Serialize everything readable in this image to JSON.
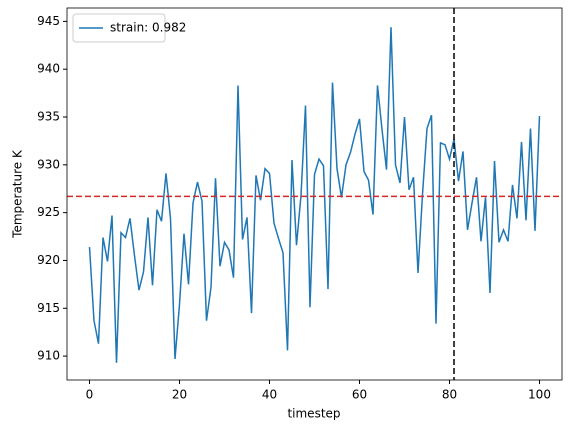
{
  "chart_data": {
    "type": "line",
    "xlabel": "timestep",
    "ylabel": "Temperature K",
    "x": [
      0,
      1,
      2,
      3,
      4,
      5,
      6,
      7,
      8,
      9,
      10,
      11,
      12,
      13,
      14,
      15,
      16,
      17,
      18,
      19,
      20,
      21,
      22,
      23,
      24,
      25,
      26,
      27,
      28,
      29,
      30,
      31,
      32,
      33,
      34,
      35,
      36,
      37,
      38,
      39,
      40,
      41,
      42,
      43,
      44,
      45,
      46,
      47,
      48,
      49,
      50,
      51,
      52,
      53,
      54,
      55,
      56,
      57,
      58,
      59,
      60,
      61,
      62,
      63,
      64,
      65,
      66,
      67,
      68,
      69,
      70,
      71,
      72,
      73,
      74,
      75,
      76,
      77,
      78,
      79,
      80,
      81,
      82,
      83,
      84,
      85,
      86,
      87,
      88,
      89,
      90,
      91,
      92,
      93,
      94,
      95,
      96,
      97,
      98,
      99,
      100
    ],
    "series": [
      {
        "name": "strain: 0.982",
        "color": "#1f77b4",
        "values": [
          921.4,
          913.7,
          911.3,
          922.4,
          919.9,
          924.7,
          909.3,
          922.9,
          922.4,
          924.4,
          920.5,
          916.9,
          918.8,
          924.5,
          917.4,
          925.3,
          924.1,
          929.1,
          924.4,
          909.7,
          915.4,
          922.8,
          917.5,
          926.0,
          928.2,
          926.2,
          913.7,
          917.2,
          928.6,
          919.4,
          921.9,
          921.1,
          918.2,
          938.3,
          922.2,
          924.5,
          914.5,
          928.9,
          926.3,
          929.6,
          929.1,
          923.9,
          922.3,
          920.8,
          910.6,
          930.5,
          921.6,
          926.8,
          936.2,
          915.1,
          929.0,
          930.6,
          929.9,
          917.0,
          938.6,
          929.6,
          926.6,
          930.0,
          931.3,
          933.2,
          934.8,
          929.3,
          928.4,
          924.8,
          938.3,
          933.7,
          929.5,
          944.4,
          930.0,
          928.1,
          935.0,
          927.4,
          928.7,
          918.7,
          926.9,
          933.8,
          935.2,
          913.4,
          932.3,
          932.1,
          930.6,
          932.7,
          928.3,
          931.4,
          923.2,
          926.0,
          928.7,
          922.0,
          926.6,
          916.6,
          930.4,
          921.9,
          923.2,
          922.0,
          927.9,
          924.4,
          932.4,
          924.2,
          933.8,
          923.1,
          935.1
        ]
      }
    ],
    "xlim": [
      -5,
      105
    ],
    "xticks": [
      0,
      20,
      40,
      60,
      80,
      100
    ],
    "ylim": [
      907.5,
      946.4
    ],
    "yticks": [
      910,
      915,
      920,
      925,
      930,
      935,
      940,
      945
    ],
    "hline": {
      "value": 926.7,
      "color": "#d62728"
    },
    "vline": {
      "value": 81,
      "color": "#000000"
    },
    "legend": "upper left"
  }
}
